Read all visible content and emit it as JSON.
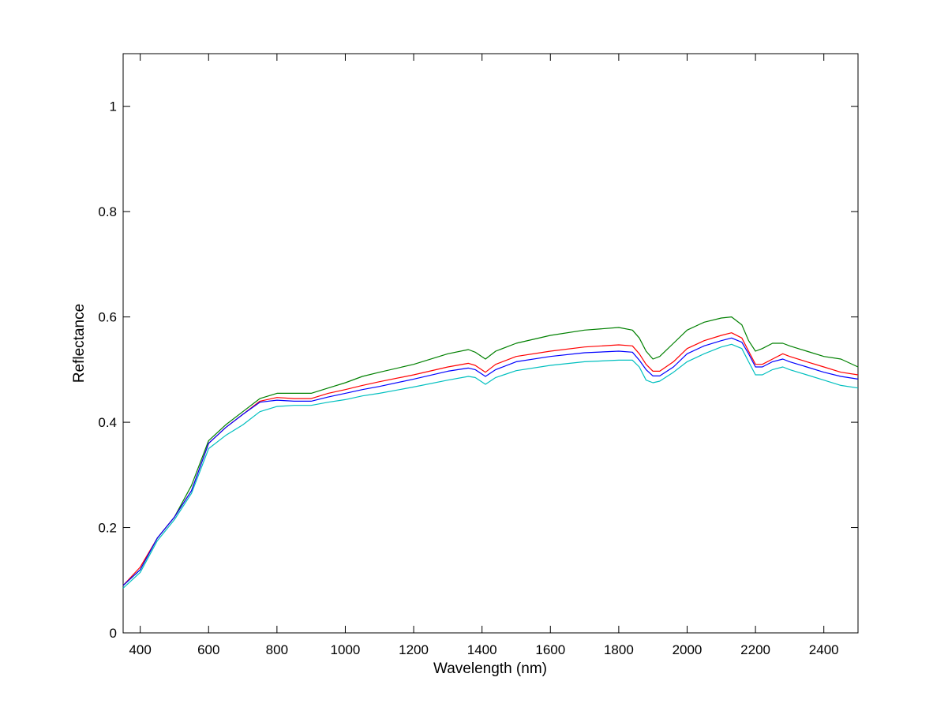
{
  "chart_data": {
    "type": "line",
    "title": "",
    "xlabel": "Wavelength (nm)",
    "ylabel": "Reflectance",
    "xlim": [
      350,
      2500
    ],
    "ylim": [
      0,
      1.1
    ],
    "xticks": [
      400,
      600,
      800,
      1000,
      1200,
      1400,
      1600,
      1800,
      2000,
      2200,
      2400
    ],
    "xtick_labels": [
      "400",
      "600",
      "800",
      "1000",
      "1200",
      "1400",
      "1600",
      "1800",
      "2000",
      "2200",
      "2400"
    ],
    "yticks": [
      0,
      0.2,
      0.4,
      0.6,
      0.8,
      1
    ],
    "ytick_labels": [
      "0",
      "0.2",
      "0.4",
      "0.6",
      "0.8",
      "1"
    ],
    "grid": false,
    "legend": "none",
    "x": [
      350,
      400,
      450,
      500,
      550,
      600,
      650,
      700,
      750,
      800,
      850,
      900,
      950,
      1000,
      1050,
      1100,
      1200,
      1300,
      1360,
      1380,
      1410,
      1440,
      1500,
      1600,
      1700,
      1800,
      1840,
      1860,
      1880,
      1900,
      1920,
      1960,
      2000,
      2050,
      2100,
      2130,
      2160,
      2180,
      2200,
      2220,
      2250,
      2280,
      2300,
      2350,
      2400,
      2450,
      2500
    ],
    "series": [
      {
        "color": "#008000",
        "values": [
          0.09,
          0.12,
          0.18,
          0.22,
          0.28,
          0.365,
          0.395,
          0.42,
          0.445,
          0.455,
          0.455,
          0.455,
          0.465,
          0.475,
          0.487,
          0.495,
          0.51,
          0.53,
          0.538,
          0.533,
          0.52,
          0.535,
          0.55,
          0.565,
          0.575,
          0.58,
          0.575,
          0.56,
          0.535,
          0.52,
          0.525,
          0.55,
          0.575,
          0.59,
          0.598,
          0.6,
          0.585,
          0.555,
          0.535,
          0.54,
          0.55,
          0.55,
          0.545,
          0.535,
          0.525,
          0.52,
          0.505
        ]
      },
      {
        "color": "#ff0000",
        "values": [
          0.09,
          0.125,
          0.18,
          0.22,
          0.27,
          0.36,
          0.39,
          0.415,
          0.44,
          0.447,
          0.445,
          0.445,
          0.455,
          0.462,
          0.47,
          0.477,
          0.49,
          0.505,
          0.512,
          0.508,
          0.495,
          0.51,
          0.525,
          0.535,
          0.543,
          0.547,
          0.545,
          0.53,
          0.51,
          0.497,
          0.497,
          0.515,
          0.54,
          0.555,
          0.565,
          0.57,
          0.56,
          0.535,
          0.51,
          0.51,
          0.52,
          0.53,
          0.525,
          0.515,
          0.505,
          0.495,
          0.49
        ]
      },
      {
        "color": "#0000ff",
        "values": [
          0.09,
          0.12,
          0.18,
          0.22,
          0.27,
          0.36,
          0.39,
          0.415,
          0.438,
          0.442,
          0.44,
          0.44,
          0.448,
          0.455,
          0.462,
          0.468,
          0.482,
          0.497,
          0.503,
          0.5,
          0.487,
          0.5,
          0.515,
          0.525,
          0.532,
          0.535,
          0.533,
          0.518,
          0.5,
          0.488,
          0.488,
          0.505,
          0.53,
          0.545,
          0.555,
          0.56,
          0.552,
          0.53,
          0.505,
          0.505,
          0.515,
          0.52,
          0.515,
          0.505,
          0.495,
          0.487,
          0.482
        ]
      },
      {
        "color": "#00bfbf",
        "values": [
          0.085,
          0.115,
          0.175,
          0.215,
          0.265,
          0.35,
          0.375,
          0.395,
          0.42,
          0.43,
          0.432,
          0.432,
          0.438,
          0.443,
          0.45,
          0.455,
          0.467,
          0.48,
          0.487,
          0.485,
          0.472,
          0.485,
          0.498,
          0.508,
          0.515,
          0.518,
          0.518,
          0.505,
          0.48,
          0.475,
          0.478,
          0.495,
          0.515,
          0.53,
          0.543,
          0.548,
          0.54,
          0.515,
          0.49,
          0.49,
          0.5,
          0.505,
          0.5,
          0.49,
          0.48,
          0.47,
          0.465
        ]
      }
    ]
  }
}
